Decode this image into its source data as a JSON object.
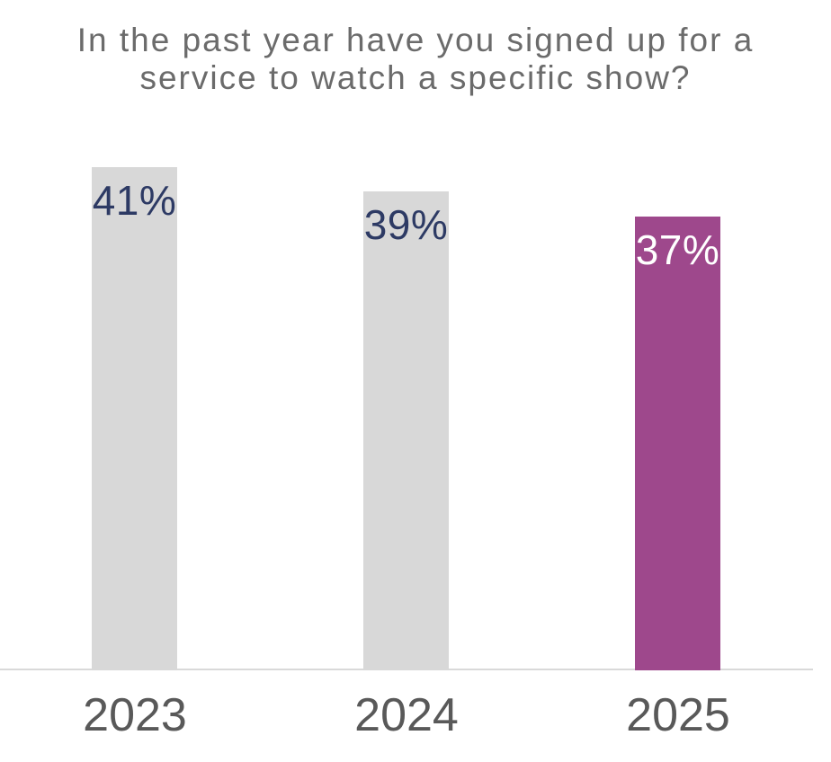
{
  "chart": {
    "title_line1": "In the past year have you signed up for a",
    "title_line2": "service to watch a specific show?"
  },
  "chart_data": {
    "type": "bar",
    "title": "In the past year have you signed up for a service to watch a specific show?",
    "categories": [
      "2023",
      "2024",
      "2025"
    ],
    "values": [
      41,
      39,
      37
    ],
    "data_labels": [
      "41%",
      "39%",
      "37%"
    ],
    "xlabel": "",
    "ylabel": "",
    "ylim": [
      0,
      47
    ],
    "grid": false,
    "legend": false,
    "y_axis_visible": false,
    "highlight_category": "2025",
    "bar_colors": [
      "#d8d8d8",
      "#d8d8d8",
      "#9e488c"
    ],
    "data_label_colors": [
      "#2d3a64",
      "#2d3a64",
      "#ffffff"
    ]
  },
  "colors": {
    "background": "#ffffff",
    "title_text": "#6b6b6b",
    "axis_line": "#d9d9d9",
    "category_label_text": "#595959",
    "bar_default": "#d8d8d8",
    "bar_highlight": "#9e488c",
    "value_label_default": "#2d3a64",
    "value_label_highlight": "#ffffff"
  }
}
